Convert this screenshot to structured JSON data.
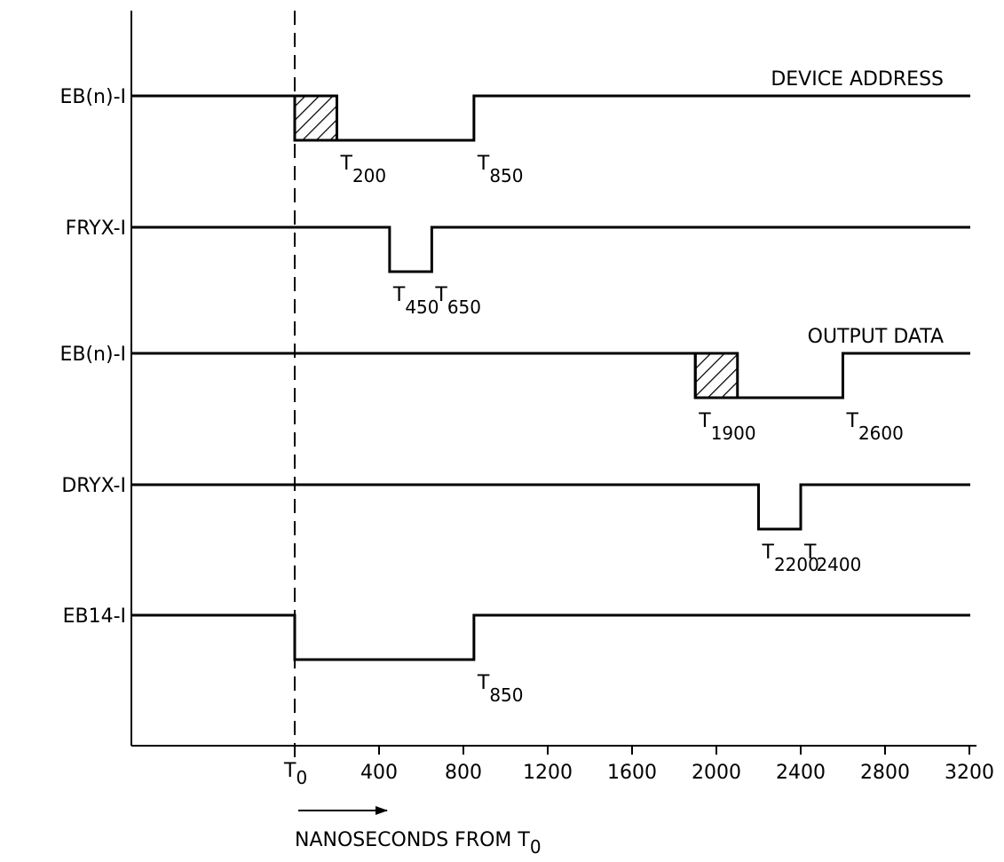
{
  "signals": [
    {
      "label": "EB(n)-I",
      "note": "DEVICE ADDRESS",
      "levels": [
        [
          0,
          1
        ],
        [
          0,
          0
        ],
        [
          850,
          1
        ]
      ],
      "hatch": [
        0,
        200
      ],
      "markers": [
        {
          "prefix": "T",
          "sub": "200",
          "t": 200
        },
        {
          "prefix": "T",
          "sub": "850",
          "t": 850
        }
      ]
    },
    {
      "label": "FRYX-I",
      "note": "",
      "levels": [
        [
          0,
          1
        ],
        [
          450,
          0
        ],
        [
          650,
          1
        ]
      ],
      "hatch": null,
      "markers": [
        {
          "prefix": "T",
          "sub": "450",
          "t": 450
        },
        {
          "prefix": "T",
          "sub": "650",
          "t": 650
        }
      ]
    },
    {
      "label": "EB(n)-I",
      "note": "OUTPUT DATA",
      "levels": [
        [
          0,
          1
        ],
        [
          1900,
          0
        ],
        [
          2600,
          1
        ]
      ],
      "hatch": [
        1900,
        2100
      ],
      "markers": [
        {
          "prefix": "T",
          "sub": "1900",
          "t": 1900
        },
        {
          "prefix": "T",
          "sub": "2600",
          "t": 2600
        }
      ]
    },
    {
      "label": "DRYX-I",
      "note": "",
      "levels": [
        [
          0,
          1
        ],
        [
          2200,
          0
        ],
        [
          2400,
          1
        ]
      ],
      "hatch": null,
      "markers": [
        {
          "prefix": "T",
          "sub": "2200",
          "t": 2200
        },
        {
          "prefix": "T",
          "sub": "2400",
          "t": 2400
        }
      ]
    },
    {
      "label": "EB14-I",
      "note": "",
      "levels": [
        [
          0,
          1
        ],
        [
          0,
          0
        ],
        [
          850,
          1
        ]
      ],
      "hatch": null,
      "markers": [
        {
          "prefix": "T",
          "sub": "850",
          "t": 850
        }
      ]
    }
  ],
  "x_axis": {
    "ticks": [
      0,
      400,
      800,
      1200,
      1600,
      2000,
      2400,
      2800,
      3200
    ],
    "tick_labels": [
      "",
      "400",
      "800",
      "1200",
      "1600",
      "2000",
      "2400",
      "2800",
      "3200"
    ],
    "origin_label": {
      "prefix": "T",
      "sub": "0"
    },
    "title": {
      "prefix": "NANOSECONDS FROM T",
      "sub": "0"
    },
    "range": [
      0,
      3200
    ],
    "start": -800
  },
  "reference_time": 0
}
